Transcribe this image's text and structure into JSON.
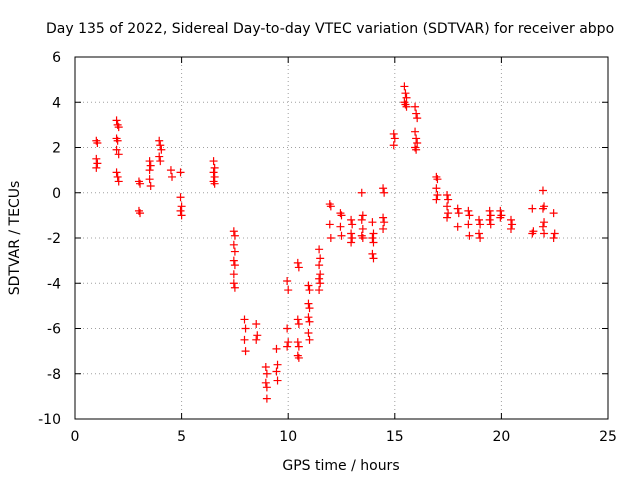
{
  "chart_data": {
    "type": "scatter",
    "title": "Day 135 of 2022, Sidereal Day-to-day VTEC variation (SDTVAR) for receiver abpo",
    "xlabel": "GPS time / hours",
    "ylabel": "SDTVAR / TECUs",
    "xlim": [
      0,
      25
    ],
    "ylim": [
      -10,
      6
    ],
    "xticks": [
      0,
      5,
      10,
      15,
      20,
      25
    ],
    "yticks": [
      -10,
      -8,
      -6,
      -4,
      -2,
      0,
      2,
      4,
      6
    ],
    "grid": true,
    "marker": "+",
    "color": "#ff0000",
    "series": [
      {
        "name": "SDTVAR",
        "points": [
          [
            1.0,
            2.3
          ],
          [
            1.05,
            2.2
          ],
          [
            1.0,
            1.5
          ],
          [
            1.05,
            1.3
          ],
          [
            1.0,
            1.1
          ],
          [
            1.95,
            3.2
          ],
          [
            2.0,
            3.0
          ],
          [
            2.05,
            2.9
          ],
          [
            1.95,
            2.4
          ],
          [
            2.0,
            2.3
          ],
          [
            1.95,
            1.9
          ],
          [
            2.05,
            1.7
          ],
          [
            1.95,
            0.9
          ],
          [
            2.0,
            0.7
          ],
          [
            2.05,
            0.5
          ],
          [
            3.0,
            0.5
          ],
          [
            3.05,
            0.4
          ],
          [
            3.0,
            -0.8
          ],
          [
            3.05,
            -0.9
          ],
          [
            3.5,
            1.4
          ],
          [
            3.55,
            1.2
          ],
          [
            3.5,
            1.0
          ],
          [
            3.5,
            0.6
          ],
          [
            3.55,
            0.3
          ],
          [
            3.95,
            2.3
          ],
          [
            4.0,
            2.1
          ],
          [
            4.05,
            1.9
          ],
          [
            3.95,
            1.6
          ],
          [
            4.0,
            1.4
          ],
          [
            4.5,
            1.0
          ],
          [
            4.55,
            0.7
          ],
          [
            4.95,
            0.9
          ],
          [
            4.95,
            -0.2
          ],
          [
            5.0,
            -0.6
          ],
          [
            4.95,
            -0.8
          ],
          [
            5.0,
            -1.0
          ],
          [
            6.5,
            1.4
          ],
          [
            6.55,
            1.1
          ],
          [
            6.5,
            0.9
          ],
          [
            6.55,
            0.7
          ],
          [
            6.5,
            0.5
          ],
          [
            6.55,
            0.4
          ],
          [
            7.45,
            -1.7
          ],
          [
            7.5,
            -1.9
          ],
          [
            7.45,
            -2.3
          ],
          [
            7.5,
            -2.6
          ],
          [
            7.45,
            -3.0
          ],
          [
            7.5,
            -3.2
          ],
          [
            7.45,
            -3.6
          ],
          [
            7.45,
            -4.0
          ],
          [
            7.5,
            -4.2
          ],
          [
            7.95,
            -5.6
          ],
          [
            8.0,
            -6.0
          ],
          [
            7.95,
            -6.5
          ],
          [
            8.0,
            -7.0
          ],
          [
            8.5,
            -5.8
          ],
          [
            8.55,
            -6.3
          ],
          [
            8.5,
            -6.5
          ],
          [
            8.95,
            -7.7
          ],
          [
            9.0,
            -8.0
          ],
          [
            8.95,
            -8.4
          ],
          [
            9.0,
            -8.6
          ],
          [
            9.0,
            -9.1
          ],
          [
            9.45,
            -6.9
          ],
          [
            9.5,
            -7.6
          ],
          [
            9.45,
            -7.9
          ],
          [
            9.5,
            -8.3
          ],
          [
            9.95,
            -3.9
          ],
          [
            10.0,
            -4.3
          ],
          [
            9.95,
            -6.0
          ],
          [
            10.0,
            -6.6
          ],
          [
            9.95,
            -6.8
          ],
          [
            10.45,
            -3.1
          ],
          [
            10.5,
            -3.3
          ],
          [
            10.45,
            -5.6
          ],
          [
            10.5,
            -5.8
          ],
          [
            10.45,
            -6.6
          ],
          [
            10.5,
            -6.8
          ],
          [
            10.45,
            -7.2
          ],
          [
            10.5,
            -7.3
          ],
          [
            10.95,
            -4.1
          ],
          [
            11.0,
            -4.3
          ],
          [
            10.95,
            -4.9
          ],
          [
            11.0,
            -5.1
          ],
          [
            10.95,
            -5.5
          ],
          [
            11.0,
            -5.7
          ],
          [
            10.95,
            -6.2
          ],
          [
            11.0,
            -6.5
          ],
          [
            11.45,
            -2.5
          ],
          [
            11.5,
            -2.9
          ],
          [
            11.45,
            -3.2
          ],
          [
            11.5,
            -3.6
          ],
          [
            11.45,
            -3.8
          ],
          [
            11.5,
            -4.0
          ],
          [
            11.45,
            -4.3
          ],
          [
            11.95,
            -0.5
          ],
          [
            12.0,
            -0.6
          ],
          [
            11.95,
            -1.4
          ],
          [
            12.0,
            -2.0
          ],
          [
            12.45,
            -0.9
          ],
          [
            12.5,
            -1.0
          ],
          [
            12.45,
            -1.5
          ],
          [
            12.5,
            -1.9
          ],
          [
            12.95,
            -1.2
          ],
          [
            13.0,
            -1.4
          ],
          [
            12.95,
            -1.8
          ],
          [
            13.0,
            -2.0
          ],
          [
            12.95,
            -2.2
          ],
          [
            13.45,
            0.0
          ],
          [
            13.5,
            -1.0
          ],
          [
            13.45,
            -1.2
          ],
          [
            13.5,
            -1.6
          ],
          [
            13.45,
            -1.9
          ],
          [
            13.5,
            -2.0
          ],
          [
            13.95,
            -1.3
          ],
          [
            14.0,
            -1.8
          ],
          [
            13.95,
            -2.0
          ],
          [
            14.0,
            -2.2
          ],
          [
            13.95,
            -2.7
          ],
          [
            14.0,
            -2.9
          ],
          [
            14.45,
            0.2
          ],
          [
            14.5,
            0.0
          ],
          [
            14.45,
            -1.1
          ],
          [
            14.5,
            -1.3
          ],
          [
            14.45,
            -1.6
          ],
          [
            14.95,
            2.6
          ],
          [
            15.0,
            2.4
          ],
          [
            14.95,
            2.1
          ],
          [
            15.45,
            4.7
          ],
          [
            15.5,
            4.4
          ],
          [
            15.55,
            4.2
          ],
          [
            15.45,
            4.0
          ],
          [
            15.5,
            3.9
          ],
          [
            15.55,
            3.8
          ],
          [
            15.95,
            3.8
          ],
          [
            16.0,
            3.5
          ],
          [
            16.05,
            3.3
          ],
          [
            15.95,
            2.7
          ],
          [
            16.0,
            2.4
          ],
          [
            16.05,
            2.2
          ],
          [
            15.95,
            2.0
          ],
          [
            16.0,
            1.9
          ],
          [
            16.95,
            0.7
          ],
          [
            17.0,
            0.6
          ],
          [
            16.95,
            0.2
          ],
          [
            17.0,
            -0.1
          ],
          [
            16.95,
            -0.3
          ],
          [
            17.45,
            -0.1
          ],
          [
            17.5,
            -0.3
          ],
          [
            17.45,
            -0.6
          ],
          [
            17.5,
            -0.9
          ],
          [
            17.45,
            -1.1
          ],
          [
            17.95,
            -0.7
          ],
          [
            18.0,
            -0.9
          ],
          [
            17.95,
            -1.5
          ],
          [
            18.45,
            -0.8
          ],
          [
            18.5,
            -1.0
          ],
          [
            18.45,
            -1.4
          ],
          [
            18.5,
            -1.9
          ],
          [
            18.95,
            -1.2
          ],
          [
            19.0,
            -1.4
          ],
          [
            18.95,
            -1.8
          ],
          [
            19.0,
            -2.0
          ],
          [
            19.45,
            -0.8
          ],
          [
            19.5,
            -1.0
          ],
          [
            19.45,
            -1.2
          ],
          [
            19.5,
            -1.4
          ],
          [
            19.95,
            -0.8
          ],
          [
            20.0,
            -1.0
          ],
          [
            19.95,
            -1.1
          ],
          [
            20.45,
            -1.2
          ],
          [
            20.5,
            -1.4
          ],
          [
            20.45,
            -1.6
          ],
          [
            21.45,
            -0.7
          ],
          [
            21.5,
            -1.7
          ],
          [
            21.45,
            -1.8
          ],
          [
            21.95,
            0.1
          ],
          [
            22.0,
            -0.6
          ],
          [
            21.95,
            -0.7
          ],
          [
            22.0,
            -1.3
          ],
          [
            21.95,
            -1.5
          ],
          [
            22.0,
            -1.8
          ],
          [
            22.45,
            -0.9
          ],
          [
            22.5,
            -1.8
          ],
          [
            22.45,
            -2.0
          ]
        ]
      }
    ]
  }
}
